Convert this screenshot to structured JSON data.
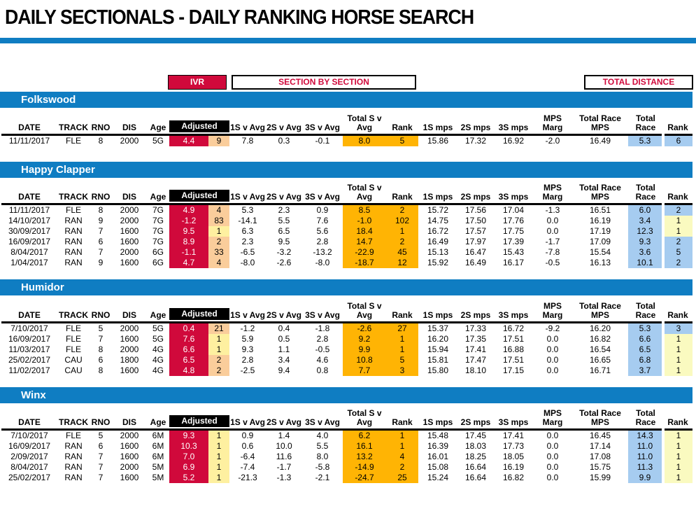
{
  "title": "DAILY SECTIONALS - DAILY RANKING HORSE SEARCH",
  "toolbar": {
    "ivr_label": "IVR",
    "section_by_section_label": "SECTION BY SECTION",
    "total_distance_label": "TOTAL DISTANCE"
  },
  "colors": {
    "accent_blue": "#0F7DC2",
    "adjusted_red": "#D0093B",
    "rank_peach": "#FACD9B",
    "rank_yellow": "#FEF0A0",
    "total_orange": "#FFB404",
    "race_blue": "#A6CCF0",
    "race_pale_yellow": "#FAFAC0",
    "adjusted_header_bg": "#000000"
  },
  "table": {
    "headers": {
      "date": "DATE",
      "track": "TRACK",
      "rno": "RNO",
      "dis": "DIS",
      "age": "Age",
      "adjusted": "Adjusted",
      "s1avg": "1S v Avg",
      "s2avg": "2S v Avg",
      "s3avg": "3S v Avg",
      "totalsv": "Total S v Avg",
      "rank": "Rank",
      "s1mps": "1S mps",
      "s2mps": "2S mps",
      "s3mps": "3S mps",
      "mpsmarg": "MPS Marg",
      "trmps": "Total Race MPS",
      "totalrace": "Total Race",
      "rank2": "Rank"
    }
  },
  "sections": [
    {
      "name": "Folkswood",
      "rows": [
        {
          "date": "11/11/2017",
          "track": "FLE",
          "rno": "8",
          "dis": "2000",
          "age": "5G",
          "adj": "4.4",
          "adj_rank": "9",
          "adj_rank_bg": "peach",
          "s1_avg": "7.8",
          "s2_avg": "0.3",
          "s3_avg": "-0.1",
          "total_sv": "8.0",
          "sv_rank": "5",
          "s1_mps": "15.86",
          "s2_mps": "17.32",
          "s3_mps": "16.92",
          "mps_marg": "-2.0",
          "tr_mps": "16.49",
          "total_race": "5.3",
          "race_rank": "6",
          "race_rank_bg": "blue"
        }
      ]
    },
    {
      "name": "Happy Clapper",
      "rows": [
        {
          "date": "11/11/2017",
          "track": "FLE",
          "rno": "8",
          "dis": "2000",
          "age": "7G",
          "adj": "4.9",
          "adj_rank": "4",
          "adj_rank_bg": "peach",
          "s1_avg": "5.3",
          "s2_avg": "2.3",
          "s3_avg": "0.9",
          "total_sv": "8.5",
          "sv_rank": "2",
          "s1_mps": "15.72",
          "s2_mps": "17.56",
          "s3_mps": "17.04",
          "mps_marg": "-1.3",
          "tr_mps": "16.51",
          "total_race": "6.0",
          "race_rank": "2",
          "race_rank_bg": "blue"
        },
        {
          "date": "14/10/2017",
          "track": "RAN",
          "rno": "9",
          "dis": "2000",
          "age": "7G",
          "adj": "-1.2",
          "adj_rank": "83",
          "adj_rank_bg": "peach",
          "s1_avg": "-14.1",
          "s2_avg": "5.5",
          "s3_avg": "7.6",
          "total_sv": "-1.0",
          "sv_rank": "102",
          "s1_mps": "14.75",
          "s2_mps": "17.50",
          "s3_mps": "17.76",
          "mps_marg": "0.0",
          "tr_mps": "16.19",
          "total_race": "3.4",
          "race_rank": "1",
          "race_rank_bg": "yellow"
        },
        {
          "date": "30/09/2017",
          "track": "RAN",
          "rno": "7",
          "dis": "1600",
          "age": "7G",
          "adj": "9.5",
          "adj_rank": "1",
          "adj_rank_bg": "yellow",
          "s1_avg": "6.3",
          "s2_avg": "6.5",
          "s3_avg": "5.6",
          "total_sv": "18.4",
          "sv_rank": "1",
          "s1_mps": "16.72",
          "s2_mps": "17.57",
          "s3_mps": "17.75",
          "mps_marg": "0.0",
          "tr_mps": "17.19",
          "total_race": "12.3",
          "race_rank": "1",
          "race_rank_bg": "yellow"
        },
        {
          "date": "16/09/2017",
          "track": "RAN",
          "rno": "6",
          "dis": "1600",
          "age": "7G",
          "adj": "8.9",
          "adj_rank": "2",
          "adj_rank_bg": "peach",
          "s1_avg": "2.3",
          "s2_avg": "9.5",
          "s3_avg": "2.8",
          "total_sv": "14.7",
          "sv_rank": "2",
          "s1_mps": "16.49",
          "s2_mps": "17.97",
          "s3_mps": "17.39",
          "mps_marg": "-1.7",
          "tr_mps": "17.09",
          "total_race": "9.3",
          "race_rank": "2",
          "race_rank_bg": "blue"
        },
        {
          "date": "8/04/2017",
          "track": "RAN",
          "rno": "7",
          "dis": "2000",
          "age": "6G",
          "adj": "-1.1",
          "adj_rank": "33",
          "adj_rank_bg": "peach",
          "s1_avg": "-6.5",
          "s2_avg": "-3.2",
          "s3_avg": "-13.2",
          "total_sv": "-22.9",
          "sv_rank": "45",
          "s1_mps": "15.13",
          "s2_mps": "16.47",
          "s3_mps": "15.43",
          "mps_marg": "-7.8",
          "tr_mps": "15.54",
          "total_race": "3.6",
          "race_rank": "5",
          "race_rank_bg": "blue"
        },
        {
          "date": "1/04/2017",
          "track": "RAN",
          "rno": "9",
          "dis": "1600",
          "age": "6G",
          "adj": "4.7",
          "adj_rank": "4",
          "adj_rank_bg": "peach",
          "s1_avg": "-8.0",
          "s2_avg": "-2.6",
          "s3_avg": "-8.0",
          "total_sv": "-18.7",
          "sv_rank": "12",
          "s1_mps": "15.92",
          "s2_mps": "16.49",
          "s3_mps": "16.17",
          "mps_marg": "-0.5",
          "tr_mps": "16.13",
          "total_race": "10.1",
          "race_rank": "2",
          "race_rank_bg": "blue"
        }
      ]
    },
    {
      "name": "Humidor",
      "rows": [
        {
          "date": "7/10/2017",
          "track": "FLE",
          "rno": "5",
          "dis": "2000",
          "age": "5G",
          "adj": "0.4",
          "adj_rank": "21",
          "adj_rank_bg": "peach",
          "s1_avg": "-1.2",
          "s2_avg": "0.4",
          "s3_avg": "-1.8",
          "total_sv": "-2.6",
          "sv_rank": "27",
          "s1_mps": "15.37",
          "s2_mps": "17.33",
          "s3_mps": "16.72",
          "mps_marg": "-9.2",
          "tr_mps": "16.20",
          "total_race": "5.3",
          "race_rank": "3",
          "race_rank_bg": "blue"
        },
        {
          "date": "16/09/2017",
          "track": "FLE",
          "rno": "7",
          "dis": "1600",
          "age": "5G",
          "adj": "7.6",
          "adj_rank": "1",
          "adj_rank_bg": "yellow",
          "s1_avg": "5.9",
          "s2_avg": "0.5",
          "s3_avg": "2.8",
          "total_sv": "9.2",
          "sv_rank": "1",
          "s1_mps": "16.20",
          "s2_mps": "17.35",
          "s3_mps": "17.51",
          "mps_marg": "0.0",
          "tr_mps": "16.82",
          "total_race": "6.6",
          "race_rank": "1",
          "race_rank_bg": "yellow"
        },
        {
          "date": "11/03/2017",
          "track": "FLE",
          "rno": "8",
          "dis": "2000",
          "age": "4G",
          "adj": "6.6",
          "adj_rank": "1",
          "adj_rank_bg": "yellow",
          "s1_avg": "9.3",
          "s2_avg": "1.1",
          "s3_avg": "-0.5",
          "total_sv": "9.9",
          "sv_rank": "1",
          "s1_mps": "15.94",
          "s2_mps": "17.41",
          "s3_mps": "16.88",
          "mps_marg": "0.0",
          "tr_mps": "16.54",
          "total_race": "6.5",
          "race_rank": "1",
          "race_rank_bg": "yellow"
        },
        {
          "date": "25/02/2017",
          "track": "CAU",
          "rno": "6",
          "dis": "1800",
          "age": "4G",
          "adj": "6.5",
          "adj_rank": "2",
          "adj_rank_bg": "peach",
          "s1_avg": "2.8",
          "s2_avg": "3.4",
          "s3_avg": "4.6",
          "total_sv": "10.8",
          "sv_rank": "5",
          "s1_mps": "15.81",
          "s2_mps": "17.47",
          "s3_mps": "17.51",
          "mps_marg": "0.0",
          "tr_mps": "16.65",
          "total_race": "6.8",
          "race_rank": "1",
          "race_rank_bg": "yellow"
        },
        {
          "date": "11/02/2017",
          "track": "CAU",
          "rno": "8",
          "dis": "1600",
          "age": "4G",
          "adj": "4.8",
          "adj_rank": "2",
          "adj_rank_bg": "peach",
          "s1_avg": "-2.5",
          "s2_avg": "9.4",
          "s3_avg": "0.8",
          "total_sv": "7.7",
          "sv_rank": "3",
          "s1_mps": "15.80",
          "s2_mps": "18.10",
          "s3_mps": "17.15",
          "mps_marg": "0.0",
          "tr_mps": "16.71",
          "total_race": "3.7",
          "race_rank": "1",
          "race_rank_bg": "yellow"
        }
      ]
    },
    {
      "name": "Winx",
      "rows": [
        {
          "date": "7/10/2017",
          "track": "FLE",
          "rno": "5",
          "dis": "2000",
          "age": "6M",
          "adj": "9.3",
          "adj_rank": "1",
          "adj_rank_bg": "yellow",
          "s1_avg": "0.9",
          "s2_avg": "1.4",
          "s3_avg": "4.0",
          "total_sv": "6.2",
          "sv_rank": "1",
          "s1_mps": "15.48",
          "s2_mps": "17.45",
          "s3_mps": "17.41",
          "mps_marg": "0.0",
          "tr_mps": "16.45",
          "total_race": "14.3",
          "race_rank": "1",
          "race_rank_bg": "yellow"
        },
        {
          "date": "16/09/2017",
          "track": "RAN",
          "rno": "6",
          "dis": "1600",
          "age": "6M",
          "adj": "10.3",
          "adj_rank": "1",
          "adj_rank_bg": "yellow",
          "s1_avg": "0.6",
          "s2_avg": "10.0",
          "s3_avg": "5.5",
          "total_sv": "16.1",
          "sv_rank": "1",
          "s1_mps": "16.39",
          "s2_mps": "18.03",
          "s3_mps": "17.73",
          "mps_marg": "0.0",
          "tr_mps": "17.14",
          "total_race": "11.0",
          "race_rank": "1",
          "race_rank_bg": "yellow"
        },
        {
          "date": "2/09/2017",
          "track": "RAN",
          "rno": "7",
          "dis": "1600",
          "age": "6M",
          "adj": "7.0",
          "adj_rank": "1",
          "adj_rank_bg": "yellow",
          "s1_avg": "-6.4",
          "s2_avg": "11.6",
          "s3_avg": "8.0",
          "total_sv": "13.2",
          "sv_rank": "4",
          "s1_mps": "16.01",
          "s2_mps": "18.25",
          "s3_mps": "18.05",
          "mps_marg": "0.0",
          "tr_mps": "17.08",
          "total_race": "11.0",
          "race_rank": "1",
          "race_rank_bg": "yellow"
        },
        {
          "date": "8/04/2017",
          "track": "RAN",
          "rno": "7",
          "dis": "2000",
          "age": "5M",
          "adj": "6.9",
          "adj_rank": "1",
          "adj_rank_bg": "yellow",
          "s1_avg": "-7.4",
          "s2_avg": "-1.7",
          "s3_avg": "-5.8",
          "total_sv": "-14.9",
          "sv_rank": "2",
          "s1_mps": "15.08",
          "s2_mps": "16.64",
          "s3_mps": "16.19",
          "mps_marg": "0.0",
          "tr_mps": "15.75",
          "total_race": "11.3",
          "race_rank": "1",
          "race_rank_bg": "yellow"
        },
        {
          "date": "25/02/2017",
          "track": "RAN",
          "rno": "7",
          "dis": "1600",
          "age": "5M",
          "adj": "5.2",
          "adj_rank": "1",
          "adj_rank_bg": "yellow",
          "s1_avg": "-21.3",
          "s2_avg": "-1.3",
          "s3_avg": "-2.1",
          "total_sv": "-24.7",
          "sv_rank": "25",
          "s1_mps": "15.24",
          "s2_mps": "16.64",
          "s3_mps": "16.82",
          "mps_marg": "0.0",
          "tr_mps": "15.99",
          "total_race": "9.9",
          "race_rank": "1",
          "race_rank_bg": "yellow"
        }
      ]
    }
  ]
}
